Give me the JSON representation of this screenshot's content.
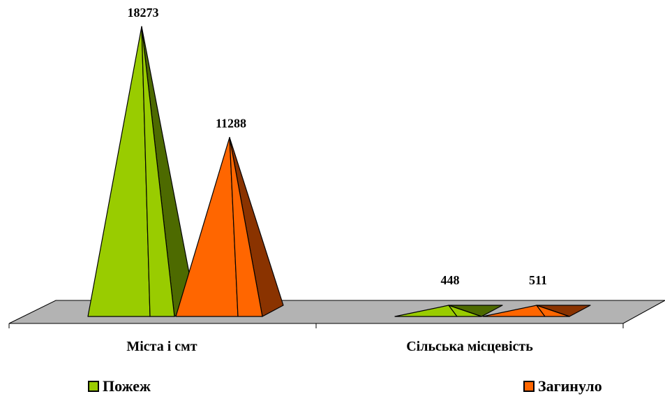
{
  "chart_data": {
    "type": "bar",
    "style": "3d-pyramid",
    "categories": [
      "Міста і смт",
      "Сільська місцевість"
    ],
    "series": [
      {
        "name": "Пожеж",
        "values": [
          18273,
          448
        ],
        "color": "#99CC00",
        "shade": "#4D6A00"
      },
      {
        "name": "Загинуло",
        "values": [
          11288,
          511
        ],
        "color": "#FF6600",
        "shade": "#8A3300"
      }
    ],
    "ylim": [
      0,
      18273
    ],
    "floor_color": "#B3B3B3",
    "grid": false,
    "legend_placement": "bottom"
  }
}
